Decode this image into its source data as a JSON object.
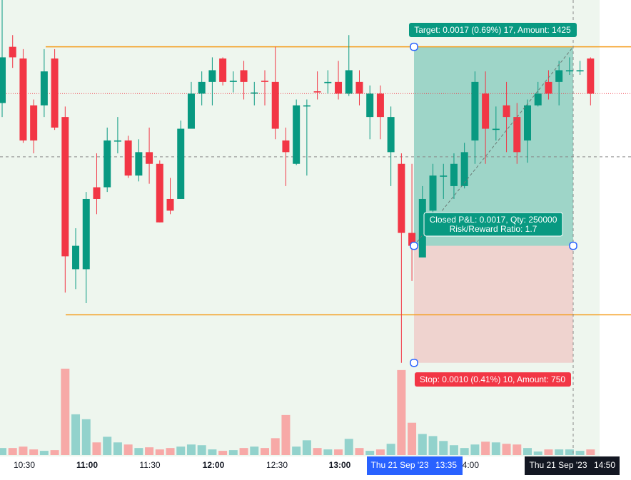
{
  "chart_data": {
    "type": "candlestick",
    "open": [
      0.00122,
      0.0017,
      0.0016,
      0.0012,
      0.0012,
      0.0016,
      0.0011,
      -0.0002,
      -0.0002,
      0.0005,
      0.0005,
      0.00089,
      0.0009,
      0.0006,
      0.0008,
      0.0007,
      0.0004,
      0.0004,
      0.001,
      0.0013,
      0.0014,
      0.0016,
      0.0014,
      0.0015,
      0.0013,
      0.00141,
      0.0014,
      0.0009,
      0.0007,
      0.00119,
      0.00132,
      0.00139,
      0.0014,
      0.0013,
      0.0014,
      0.0011,
      0.0013,
      0.0008,
      0.0007,
      0.00011,
      -0.0001,
      0.0003,
      0.00059,
      0.00051,
      0.00051,
      0.0009,
      0.0013,
      0.00099,
      0.0012,
      0.0011,
      0.0009,
      0.0012,
      0.0014,
      0.0014,
      0.00149,
      0.00149,
      0.0016
    ],
    "high": [
      0.0021,
      0.0018,
      0.00168,
      0.00125,
      0.00168,
      0.00168,
      0.00119,
      0.00015,
      0.00046,
      0.00079,
      0.00101,
      0.0011,
      0.00094,
      0.00091,
      0.00101,
      0.00073,
      0.00058,
      0.00107,
      0.0014,
      0.00149,
      0.00161,
      0.00161,
      0.00149,
      0.00158,
      0.0014,
      0.0015,
      0.0017,
      0.00101,
      0.00125,
      0.00125,
      0.00149,
      0.0015,
      0.00158,
      0.0018,
      0.0015,
      0.00137,
      0.00137,
      0.00119,
      0.00079,
      0.0007,
      0.00051,
      0.0007,
      0.0007,
      0.00079,
      0.00088,
      0.00149,
      0.00149,
      0.00119,
      0.0014,
      0.00122,
      0.00125,
      0.0014,
      0.0015,
      0.00158,
      0.00161,
      0.00158,
      0.00161
    ],
    "low": [
      0.0011,
      0.00152,
      0.00088,
      0.00079,
      0.0011,
      0.00099,
      -0.0004,
      -0.00037,
      -0.00049,
      0.00027,
      0.00046,
      0.00079,
      0.00058,
      0.00055,
      0.00053,
      0.0002,
      0.00027,
      0.0004,
      0.001,
      0.0012,
      0.0012,
      0.00137,
      0.00131,
      0.00125,
      0.0012,
      0.0012,
      0.00091,
      0.00051,
      0.00069,
      0.0006,
      0.00125,
      0.0013,
      0.00125,
      0.00128,
      0.0012,
      0.00091,
      0.00091,
      0.00051,
      -0.001,
      -0.0003,
      -0.0001,
      0.00021,
      0.0004,
      0.0004,
      0.00049,
      0.0007,
      0.0007,
      0.0009,
      0.0008,
      0.0007,
      0.00071,
      0.00119,
      0.00125,
      0.0012,
      0.00146,
      0.00146,
      0.0012
    ],
    "close": [
      0.00161,
      0.00161,
      0.0009,
      0.0009,
      0.00149,
      0.00101,
      -9e-05,
      0,
      0.0004,
      0.0004,
      0.0009,
      0.0009,
      0.0006,
      0.0008,
      0.0007,
      0.0002,
      0.0003,
      0.001,
      0.0013,
      0.0014,
      0.0015,
      0.0014,
      0.00141,
      0.0014,
      0.00131,
      0.0014,
      0.001,
      0.0008,
      0.0012,
      0.0012,
      0.00131,
      0.0014,
      0.0013,
      0.0015,
      0.0013,
      0.0013,
      0.0011,
      0.0011,
      0.00011,
      0,
      0.0004,
      0.0006,
      0.0006,
      0.0007,
      0.0008,
      0.0014,
      0.001,
      0.001,
      0.0011,
      0.0008,
      0.0012,
      0.0013,
      0.0013,
      0.0015,
      0.0015,
      0.0015,
      0.0013
    ],
    "volume": [
      10,
      10,
      12,
      8,
      6,
      7,
      123,
      58,
      51,
      18,
      26,
      18,
      15,
      10,
      11,
      8,
      10,
      12,
      15,
      14,
      8,
      6,
      7,
      10,
      12,
      10,
      24,
      57,
      12,
      21,
      10,
      8,
      8,
      23,
      10,
      6,
      8,
      16,
      121,
      46,
      30,
      27,
      20,
      14,
      10,
      15,
      19,
      18,
      16,
      15,
      10,
      5,
      8,
      8,
      8,
      6,
      8
    ],
    "ylim": [
      -0.0018,
      0.0021
    ],
    "vlim": [
      0,
      130
    ],
    "up_color": "#089981",
    "down_color": "#f23645",
    "levels": [
      0.0017,
      -0.00059
    ],
    "price_line": 0.0013,
    "crosshair": 0.00076,
    "target": 0.0017,
    "stop": -0.001,
    "target_label": "Target: 0.0017 (0.69%) 17, Amount: 1425",
    "pnl_label": "Closed P&L: 0.0017, Qty: 250000",
    "rr_label": "Risk/Reward Ratio: 1.7",
    "stop_label": "Stop: 0.0010 (0.41%) 10, Amount: 750",
    "time_labels": [
      "10:30",
      "11:00",
      "11:30",
      "12:00",
      "12:30",
      "13:00",
      "14:00"
    ],
    "start_date": "Thu 21 Sep '23",
    "start_time": "13:35",
    "end_date": "Thu 21 Sep '23",
    "end_time": "14:50"
  }
}
